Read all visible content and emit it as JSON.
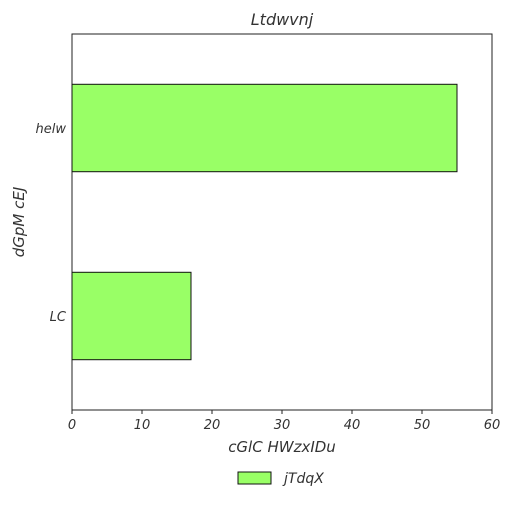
{
  "chart_data": {
    "type": "bar",
    "orientation": "horizontal",
    "title": "Ltdwvnj",
    "xlabel": "cGlC HWzxIDu",
    "ylabel": "dGpM cEJ",
    "categories": [
      "helw",
      "LC"
    ],
    "series": [
      {
        "name": "jTdqX",
        "values": [
          55,
          17
        ],
        "color": "#99ff66"
      }
    ],
    "xlim": [
      0,
      60
    ],
    "xticks": [
      0,
      10,
      20,
      30,
      40,
      50,
      60
    ],
    "grid": false,
    "legend": "bottom-center"
  }
}
